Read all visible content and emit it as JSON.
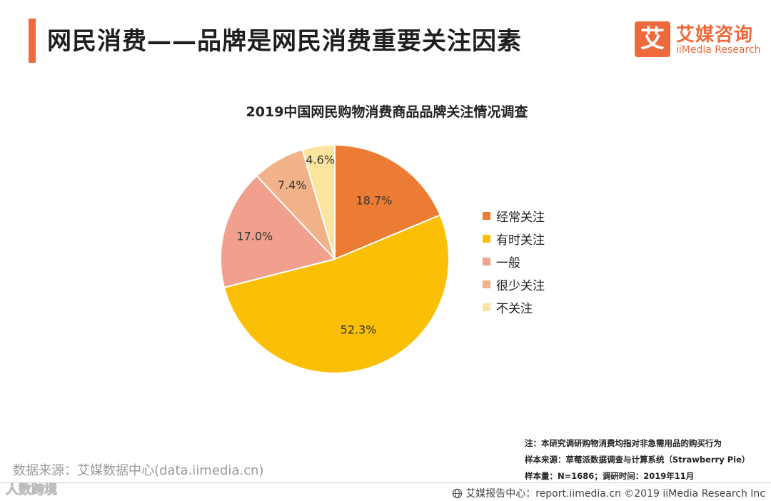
{
  "header": {
    "title": "网民消费——品牌是网民消费重要关注因素",
    "logo_mark": "艾",
    "logo_cn": "艾媒咨询",
    "logo_en": "iiMedia Research"
  },
  "chart_data": {
    "type": "pie",
    "title": "2019中国网民购物消费商品品牌关注情况调查",
    "unit": "%",
    "slices": [
      {
        "label": "经常关注",
        "value": 18.7,
        "display": "18.7%",
        "color": "#ec7b33"
      },
      {
        "label": "有时关注",
        "value": 52.3,
        "display": "52.3%",
        "color": "#fbbf06"
      },
      {
        "label": "一般",
        "value": 17.0,
        "display": "17.0%",
        "color": "#f0a08d"
      },
      {
        "label": "很少关注",
        "value": 7.4,
        "display": "7.4%",
        "color": "#f1b289"
      },
      {
        "label": "不关注",
        "value": 4.6,
        "display": "4.6%",
        "color": "#fbe49d"
      }
    ],
    "legend_position": "right"
  },
  "notes": {
    "line1": "注：本研究调研购物消费均指对非急需用品的购买行为",
    "line2": "样本来源：草莓派数据调查与计算系统（Strawberry Pie）",
    "line3": "样本量：N=1686；调研时间：2019年11月"
  },
  "source": "数据来源：艾媒数据中心(data.iimedia.cn)",
  "watermark": "人数跨境",
  "footer": "艾媒报告中心：report.iimedia.cn ©2019 iiMedia Research Inc"
}
